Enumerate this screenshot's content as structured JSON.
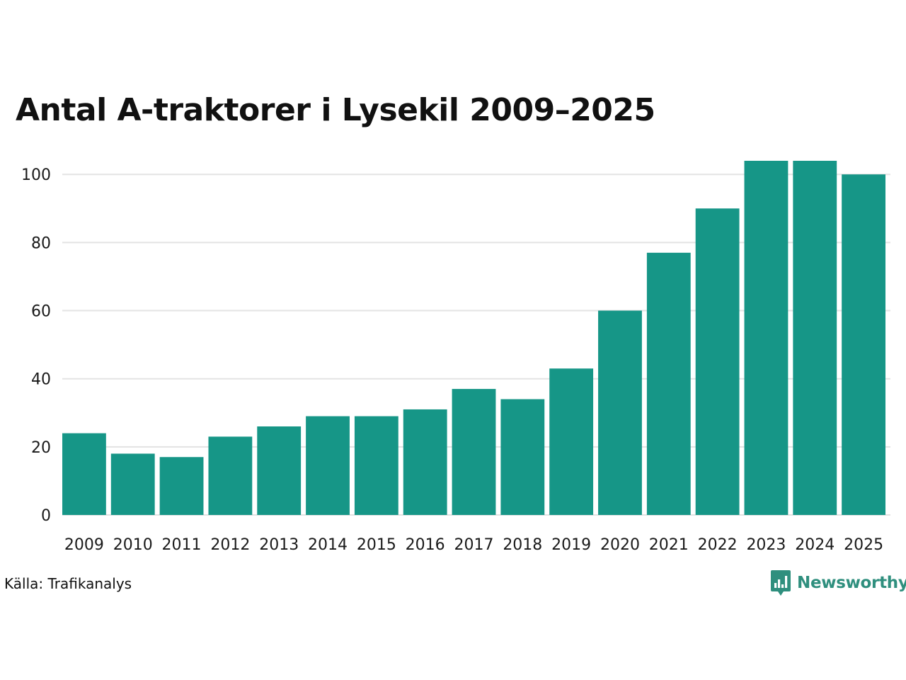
{
  "title": "Antal A-traktorer i Lysekil 2009–2025",
  "source": "Källa: Trafikanalys",
  "brand": {
    "name": "Newsworthy",
    "icon": "bar-chart-speech-bubble-icon",
    "color": "#2f8f7e"
  },
  "colors": {
    "bar": "#169687",
    "grid": "#e3e3e3"
  },
  "chart_data": {
    "type": "bar",
    "title": "Antal A-traktorer i Lysekil 2009–2025",
    "xlabel": "",
    "ylabel": "",
    "categories": [
      "2009",
      "2010",
      "2011",
      "2012",
      "2013",
      "2014",
      "2015",
      "2016",
      "2017",
      "2018",
      "2019",
      "2020",
      "2021",
      "2022",
      "2023",
      "2024",
      "2025"
    ],
    "values": [
      24,
      18,
      17,
      23,
      26,
      29,
      29,
      31,
      37,
      34,
      43,
      60,
      77,
      90,
      104,
      104,
      100
    ],
    "ylim": [
      0,
      104
    ],
    "yticks": [
      0,
      20,
      40,
      60,
      80,
      100
    ],
    "grid": true,
    "legend": "none"
  }
}
